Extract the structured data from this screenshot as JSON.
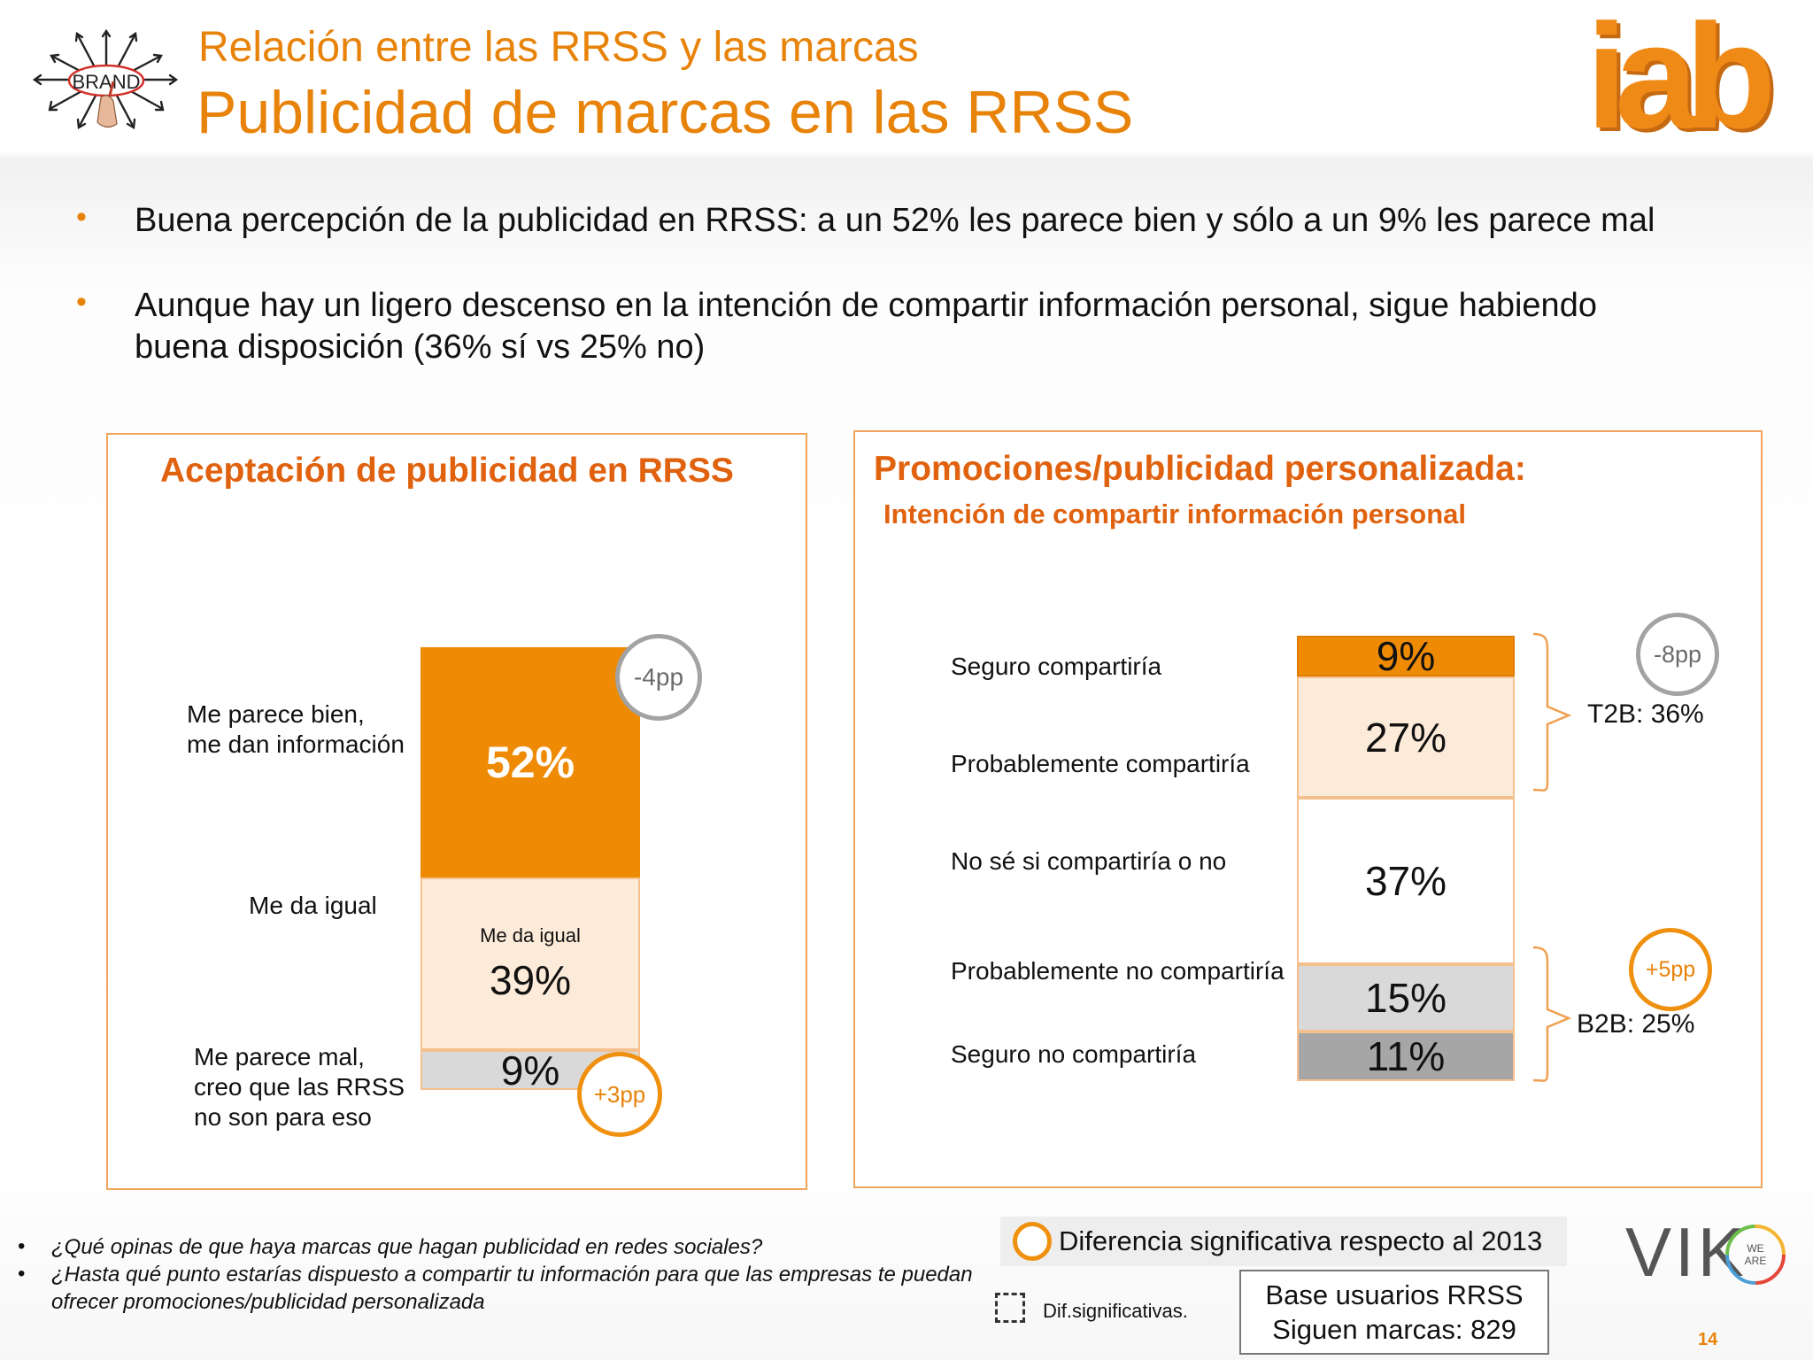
{
  "header": {
    "supertitle": "Relación entre las RRSS y las marcas",
    "title": "Publicidad de marcas en las RRSS",
    "brand_logo_text": "BRAND",
    "iab_logo_text": "iab"
  },
  "bullets": [
    {
      "marker": "•",
      "text": "Buena percepción de la publicidad en RRSS: a un 52% les parece bien y sólo a un 9% les parece mal"
    },
    {
      "marker": "•",
      "text": "Aunque hay un ligero descenso en la intención de compartir información personal, sigue habiendo buena disposición (36% sí vs 25% no)"
    }
  ],
  "colors": {
    "accent": "#e8830a",
    "panel_title": "#e0620f",
    "seg_strong": "#ef8a05",
    "seg_light": "#fdebd9",
    "seg_white": "#ffffff",
    "seg_grey": "#d9d9d9",
    "seg_dark_grey": "#a6a6a6"
  },
  "chart_data": [
    {
      "type": "bar",
      "stacked": true,
      "title": "Aceptación de  publicidad en RRSS",
      "categories": [
        "Me parece bien, me dan información",
        "Me da igual",
        "Me parece mal, creo que las RRSS no son para eso"
      ],
      "values": [
        52,
        39,
        9
      ],
      "value_labels": [
        "52%",
        "39%",
        "9%"
      ],
      "segment_inner_label": "Me da igual",
      "changes": [
        {
          "segment": "Me parece bien, me dan información",
          "label": "-4pp",
          "style": "grey"
        },
        {
          "segment": "Me parece mal, creo que las RRSS no son para eso",
          "label": "+3pp",
          "style": "orange"
        }
      ],
      "row_labels": [
        [
          "Me parece bien,",
          "me dan información"
        ],
        [
          "Me da igual"
        ],
        [
          "Me parece mal,",
          "creo que las RRSS",
          "no son para eso"
        ]
      ]
    },
    {
      "type": "bar",
      "stacked": true,
      "title": "Promociones/publicidad personalizada:",
      "subtitle": "Intención de compartir  información personal",
      "categories": [
        "Seguro compartiría",
        "Probablemente compartiría",
        "No sé si compartiría o no",
        "Probablemente no compartiría",
        "Seguro no compartiría"
      ],
      "values": [
        9,
        27,
        37,
        15,
        11
      ],
      "value_labels": [
        "9%",
        "27%",
        "37%",
        "15%",
        "11%"
      ],
      "groups": [
        {
          "label": "T2B: 36%",
          "members": [
            "Seguro compartiría",
            "Probablemente compartiría"
          ],
          "change": "-8pp",
          "style": "grey"
        },
        {
          "label": "B2B: 25%",
          "members": [
            "Probablemente no compartiría",
            "Seguro no compartiría"
          ],
          "change": "+5pp",
          "style": "orange"
        }
      ]
    }
  ],
  "legend": {
    "significant": "Diferencia significativa respecto al 2013",
    "dashed": "Dif.significativas."
  },
  "base": {
    "line1": "Base usuarios RRSS",
    "line2": "Siguen marcas: 829"
  },
  "footnotes": [
    {
      "marker": "•",
      "text": "¿Qué opinas de que haya marcas que hagan publicidad en redes sociales?"
    },
    {
      "marker": "•",
      "text": "¿Hasta qué punto estarías dispuesto a compartir tu información para que las empresas te puedan ofrecer promociones/publicidad personalizada"
    }
  ],
  "viko": {
    "text": "VIK",
    "badge_line1": "WE",
    "badge_line2": "ARE"
  },
  "page_number": "14"
}
